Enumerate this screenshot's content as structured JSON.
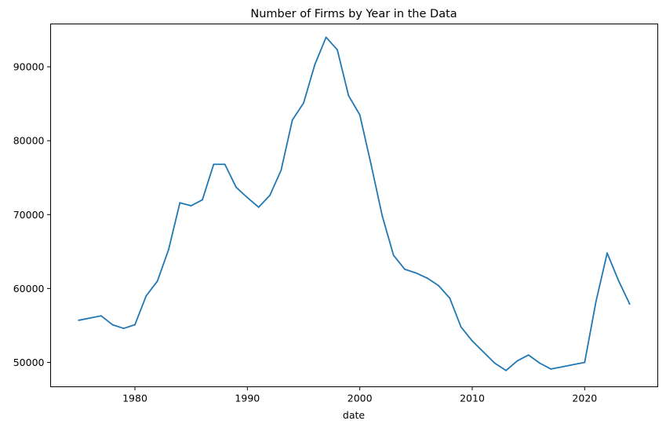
{
  "chart_data": {
    "type": "line",
    "title": "Number of Firms by Year in the Data",
    "xlabel": "date",
    "ylabel": "",
    "xlim": [
      1972.5,
      2026.5
    ],
    "ylim": [
      46700,
      95800
    ],
    "x_ticks": [
      1980,
      1990,
      2000,
      2010,
      2020
    ],
    "y_ticks": [
      50000,
      60000,
      70000,
      80000,
      90000
    ],
    "x_tick_labels": [
      "1980",
      "1990",
      "2000",
      "2010",
      "2020"
    ],
    "y_tick_labels": [
      "50000",
      "60000",
      "70000",
      "80000",
      "90000"
    ],
    "grid": false,
    "legend": false,
    "series": [
      {
        "color": "#1f77b4",
        "x": [
          1975,
          1976,
          1977,
          1978,
          1979,
          1980,
          1981,
          1982,
          1983,
          1984,
          1985,
          1986,
          1987,
          1988,
          1989,
          1990,
          1991,
          1992,
          1993,
          1994,
          1995,
          1996,
          1997,
          1998,
          1999,
          2000,
          2001,
          2002,
          2003,
          2004,
          2005,
          2006,
          2007,
          2008,
          2009,
          2010,
          2011,
          2012,
          2013,
          2014,
          2015,
          2016,
          2017,
          2018,
          2019,
          2020,
          2021,
          2022,
          2023,
          2024
        ],
        "values": [
          55700,
          56000,
          56300,
          55100,
          54600,
          55100,
          59000,
          61000,
          65300,
          71600,
          71200,
          72000,
          76800,
          76800,
          73700,
          72300,
          71000,
          72600,
          76000,
          82800,
          85100,
          90300,
          94000,
          92300,
          86100,
          83500,
          76800,
          69800,
          64500,
          62600,
          62100,
          61400,
          60400,
          58700,
          54800,
          52900,
          51400,
          49900,
          48900,
          50200,
          51000,
          49900,
          49100,
          49400,
          49700,
          50000,
          58200,
          64800,
          61100,
          57900
        ]
      }
    ]
  }
}
